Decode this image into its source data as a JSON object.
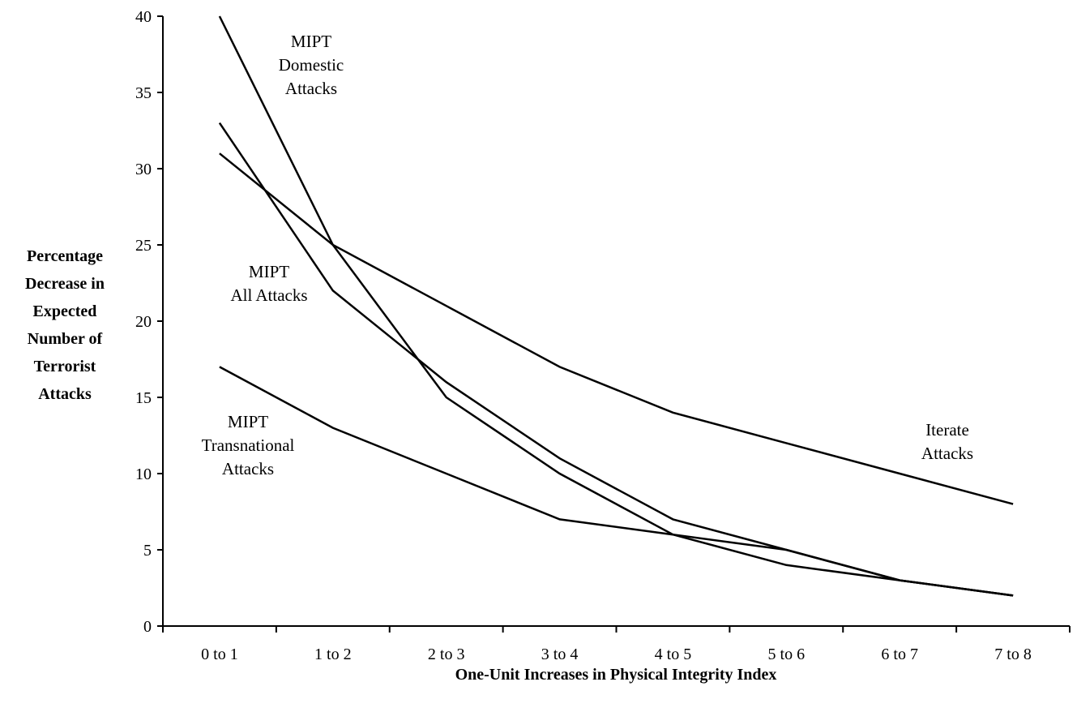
{
  "chart_data": {
    "type": "line",
    "title": "",
    "xlabel": "One-Unit Increases in Physical Integrity Index",
    "ylabel_lines": [
      "Percentage",
      "Decrease in",
      "Expected",
      "Number of",
      "Terrorist",
      "Attacks"
    ],
    "categories": [
      "0 to 1",
      "1 to 2",
      "2 to 3",
      "3 to 4",
      "4 to 5",
      "5 to 6",
      "6 to 7",
      "7 to 8"
    ],
    "ylim": [
      0,
      40
    ],
    "yticks": [
      0,
      5,
      10,
      15,
      20,
      25,
      30,
      35,
      40
    ],
    "grid": false,
    "legend": "none",
    "line_color": "#000000",
    "series": [
      {
        "values": [
          40,
          25,
          15,
          10,
          6,
          5,
          3,
          2
        ]
      },
      {
        "values": [
          33,
          22,
          16,
          11,
          7,
          5,
          3,
          2
        ]
      },
      {
        "values": [
          31,
          25,
          21,
          17,
          14,
          12,
          10,
          8
        ]
      },
      {
        "values": [
          17,
          13,
          10,
          7,
          6,
          4,
          3,
          2
        ]
      }
    ],
    "annotations": [
      {
        "lines": [
          "MIPT",
          "Domestic",
          "Attacks"
        ]
      },
      {
        "lines": [
          "MIPT",
          "All Attacks"
        ]
      },
      {
        "lines": [
          "MIPT",
          "Transnational",
          "Attacks"
        ]
      },
      {
        "lines": [
          "Iterate",
          "Attacks"
        ]
      }
    ]
  }
}
